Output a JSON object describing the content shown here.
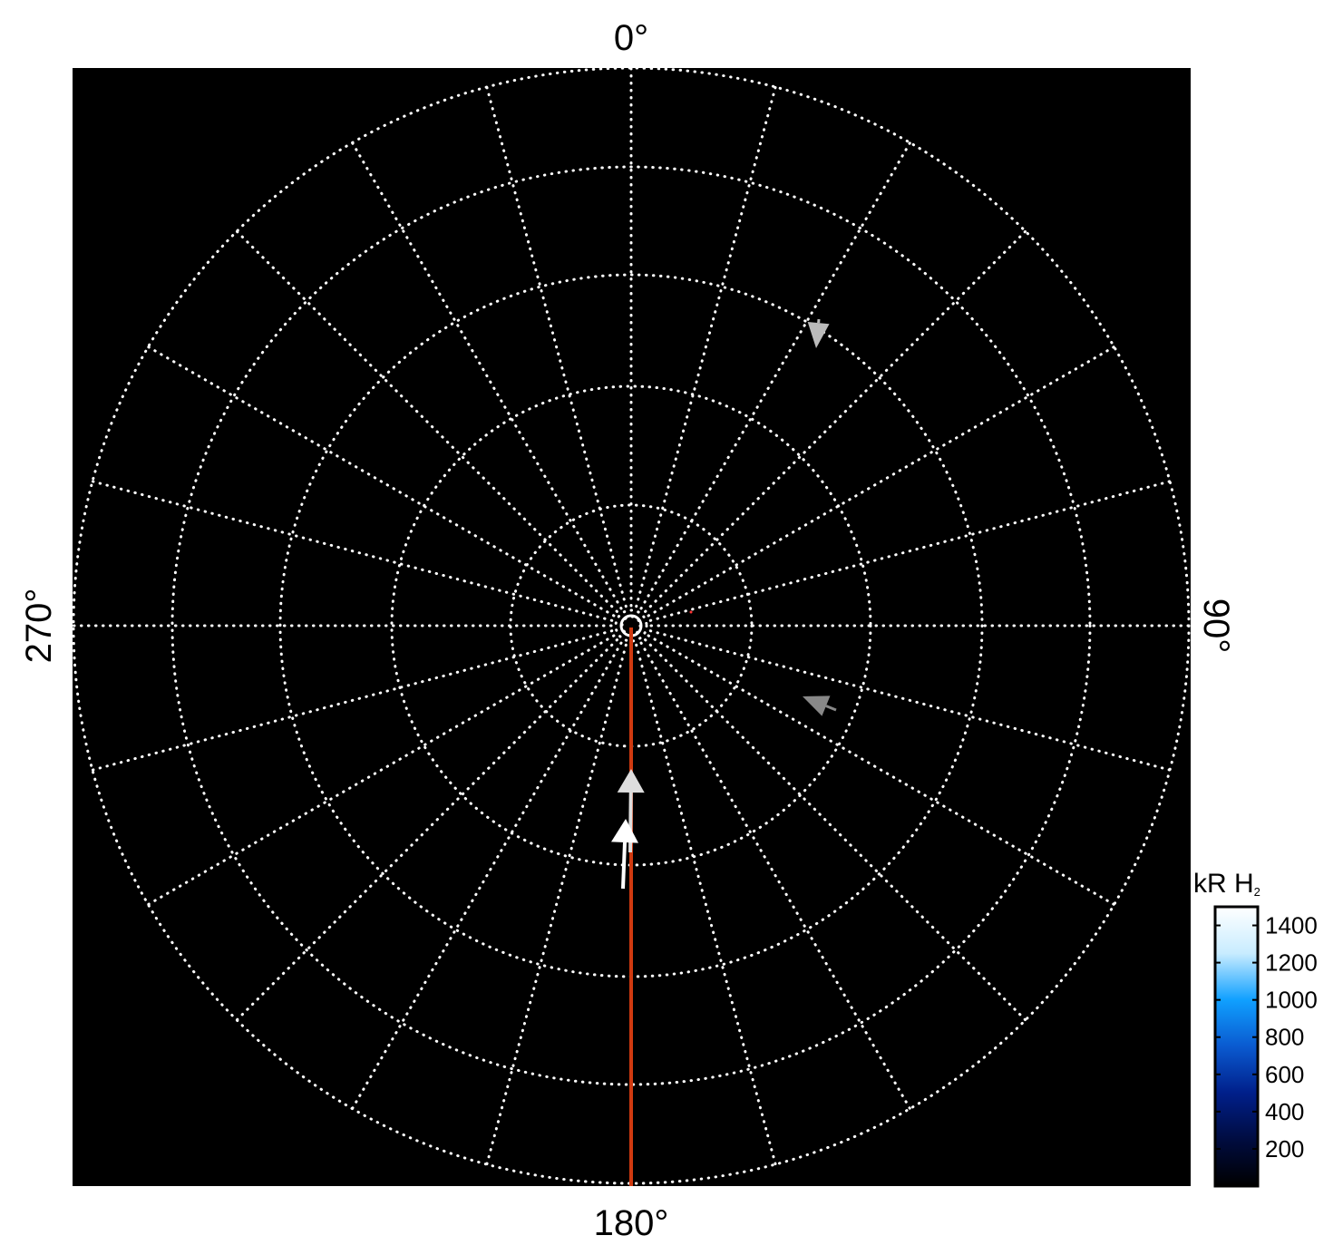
{
  "chart_data": {
    "type": "polar",
    "title": "",
    "angle_tick_labels": [
      "0°",
      "90°",
      "180°",
      "270°"
    ],
    "angle_grid_step_deg": 15,
    "grid": true,
    "grid_style": "dotted white",
    "background": "#000000",
    "colorbar": {
      "label": "kR H",
      "label_subscript": "2",
      "ticks": [
        "200",
        "400",
        "600",
        "800",
        "1000",
        "1200",
        "1400"
      ],
      "range": [
        0,
        1500
      ],
      "colormap": [
        "#000000",
        "#000c40",
        "#001f8a",
        "#0a5ad0",
        "#10a0ff",
        "#c8ecff",
        "#ffffff"
      ]
    },
    "traces": [
      {
        "kind": "line",
        "color": "#d03a10",
        "angle_deg": 180
      }
    ],
    "arrows": [
      {
        "color": "#bbbbbb",
        "direction": "inward"
      },
      {
        "color": "#888888",
        "direction": "outward"
      },
      {
        "color": "#dddddd",
        "direction": "toward-pole"
      },
      {
        "color": "#ffffff",
        "direction": "toward-pole"
      }
    ]
  }
}
